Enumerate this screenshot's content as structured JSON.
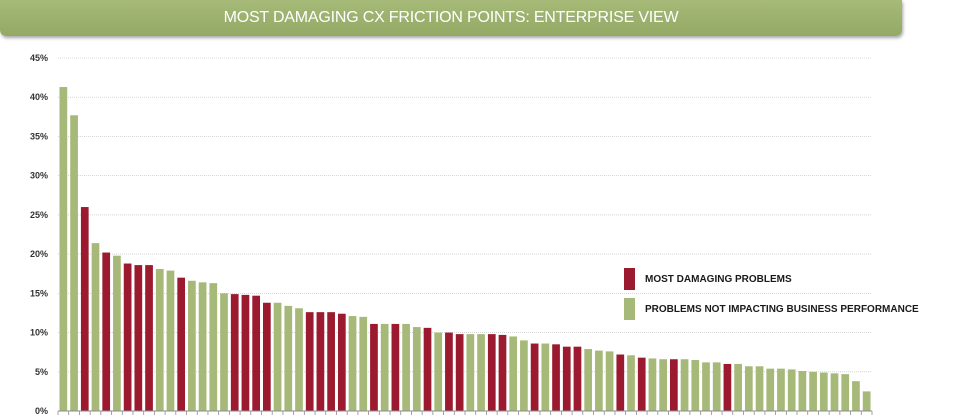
{
  "chart_data": {
    "type": "bar",
    "title": "MOST DAMAGING CX FRICTION POINTS: ENTERPRISE VIEW",
    "ylim": [
      0,
      45
    ],
    "yticks": [
      "0%",
      "5%",
      "10%",
      "15%",
      "20%",
      "25%",
      "30%",
      "35%",
      "40%",
      "45%"
    ],
    "ytick_values": [
      0,
      5,
      10,
      15,
      20,
      25,
      30,
      35,
      40,
      45
    ],
    "grid": true,
    "legend_position": "right",
    "colors": {
      "most_damaging": "#9b1a2f",
      "not_impacting": "#a6b979"
    },
    "legend": [
      {
        "key": "most_damaging",
        "label": "MOST DAMAGING PROBLEMS"
      },
      {
        "key": "not_impacting",
        "label": "PROBLEMS NOT IMPACTING BUSINESS PERFORMANCE"
      }
    ],
    "values": [
      41.3,
      37.7,
      26.0,
      21.4,
      20.2,
      19.8,
      18.8,
      18.6,
      18.6,
      18.1,
      17.9,
      17.0,
      16.6,
      16.4,
      16.3,
      15.0,
      14.9,
      14.8,
      14.7,
      13.8,
      13.8,
      13.4,
      13.1,
      12.6,
      12.6,
      12.6,
      12.4,
      12.1,
      12.0,
      11.1,
      11.1,
      11.1,
      11.1,
      10.7,
      10.6,
      10.0,
      10.0,
      9.8,
      9.8,
      9.8,
      9.8,
      9.7,
      9.5,
      9.0,
      8.6,
      8.6,
      8.5,
      8.2,
      8.2,
      7.9,
      7.7,
      7.6,
      7.2,
      7.1,
      6.8,
      6.7,
      6.6,
      6.6,
      6.6,
      6.5,
      6.2,
      6.2,
      6.0,
      6.0,
      5.7,
      5.7,
      5.4,
      5.4,
      5.3,
      5.1,
      5.0,
      4.9,
      4.8,
      4.7,
      3.8,
      2.5
    ],
    "series_keys": [
      "not_impacting",
      "not_impacting",
      "most_damaging",
      "not_impacting",
      "most_damaging",
      "not_impacting",
      "most_damaging",
      "most_damaging",
      "most_damaging",
      "not_impacting",
      "not_impacting",
      "most_damaging",
      "not_impacting",
      "not_impacting",
      "not_impacting",
      "not_impacting",
      "most_damaging",
      "most_damaging",
      "most_damaging",
      "most_damaging",
      "not_impacting",
      "not_impacting",
      "not_impacting",
      "most_damaging",
      "most_damaging",
      "most_damaging",
      "most_damaging",
      "not_impacting",
      "not_impacting",
      "most_damaging",
      "not_impacting",
      "most_damaging",
      "not_impacting",
      "not_impacting",
      "most_damaging",
      "not_impacting",
      "most_damaging",
      "most_damaging",
      "not_impacting",
      "not_impacting",
      "most_damaging",
      "most_damaging",
      "not_impacting",
      "not_impacting",
      "most_damaging",
      "not_impacting",
      "most_damaging",
      "most_damaging",
      "most_damaging",
      "not_impacting",
      "not_impacting",
      "not_impacting",
      "most_damaging",
      "not_impacting",
      "most_damaging",
      "not_impacting",
      "not_impacting",
      "most_damaging",
      "not_impacting",
      "not_impacting",
      "not_impacting",
      "not_impacting",
      "most_damaging",
      "not_impacting",
      "not_impacting",
      "not_impacting",
      "not_impacting",
      "not_impacting",
      "not_impacting",
      "not_impacting",
      "not_impacting",
      "not_impacting",
      "not_impacting",
      "not_impacting",
      "not_impacting",
      "not_impacting"
    ]
  }
}
